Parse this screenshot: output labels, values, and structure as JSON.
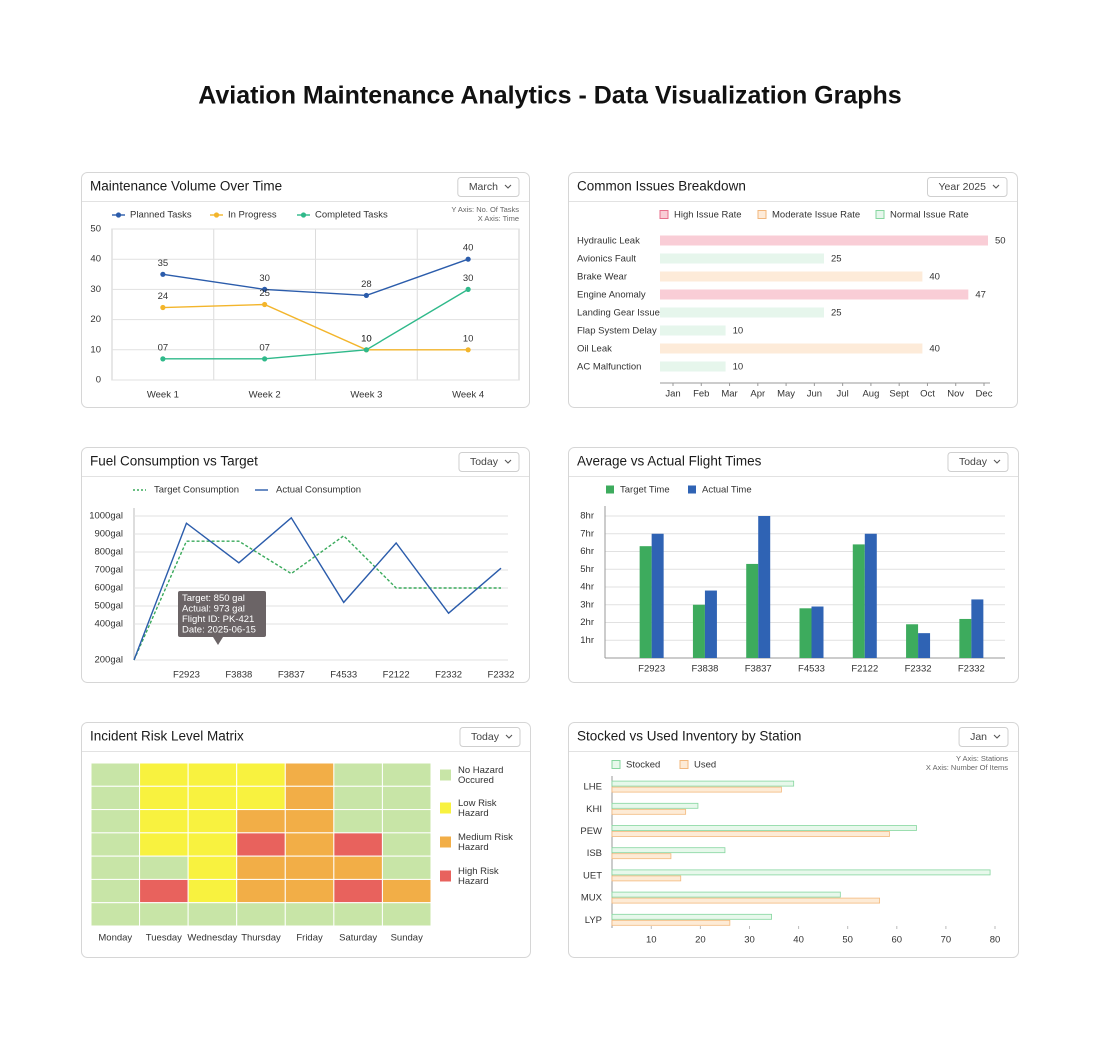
{
  "title": "Aviation Maintenance Analytics - Data Visualization Graphs",
  "chart_data": [
    {
      "type": "line",
      "title": "Maintenance Volume Over Time",
      "dropdown": "March",
      "axis_notes": [
        "Y Axis: No. Of Tasks",
        "X Axis: Time"
      ],
      "categories": [
        "Week 1",
        "Week 2",
        "Week 3",
        "Week 4"
      ],
      "series": [
        {
          "name": "Planned Tasks",
          "color": "#2b5cab",
          "values": [
            35,
            30,
            28,
            40
          ]
        },
        {
          "name": "In Progress",
          "color": "#f3b52b",
          "values": [
            24,
            25,
            10,
            10
          ]
        },
        {
          "name": "Completed Tasks",
          "color": "#2fb98a",
          "values": [
            7,
            7,
            10,
            30
          ],
          "value_labels": [
            "07",
            "07",
            "10",
            "30"
          ]
        }
      ],
      "ylim": [
        0,
        50
      ],
      "yticks": [
        0,
        10,
        20,
        30,
        40,
        50
      ],
      "grid": true,
      "markers": true,
      "data_labels": true,
      "legend": "top-left"
    },
    {
      "type": "bar",
      "orientation": "horizontal",
      "title": "Common Issues Breakdown",
      "dropdown": "Year 2025",
      "categories": [
        "Hydraulic Leak",
        "Avionics Fault",
        "Brake Wear",
        "Engine Anomaly",
        "Landing Gear Issue",
        "Flap System Delay",
        "Oil Leak",
        "AC Malfunction"
      ],
      "series": [
        {
          "name": "High Issue Rate",
          "color": "#f9cdd6",
          "edgecolor": "#e8708c",
          "values": [
            50,
            null,
            null,
            47,
            null,
            null,
            null,
            null
          ]
        },
        {
          "name": "Moderate Issue Rate",
          "color": "#fdebd9",
          "edgecolor": "#f2b77d",
          "values": [
            null,
            null,
            40,
            null,
            null,
            null,
            40,
            null
          ]
        },
        {
          "name": "Normal Issue Rate",
          "color": "#e6f6ec",
          "edgecolor": "#86d69f",
          "values": [
            null,
            25,
            null,
            null,
            25,
            10,
            null,
            10
          ]
        }
      ],
      "xlim": [
        0,
        50
      ],
      "xtick_labels": [
        "Jan",
        "Feb",
        "Mar",
        "Apr",
        "May",
        "Jun",
        "Jul",
        "Aug",
        "Sept",
        "Oct",
        "Nov",
        "Dec"
      ],
      "data_labels": true,
      "legend": "top"
    },
    {
      "type": "line",
      "title": "Fuel Consumption vs Target",
      "dropdown": "Today",
      "categories": [
        null,
        "F2923",
        "F3838",
        "F3837",
        "F4533",
        "F2122",
        "F2332",
        "F2332"
      ],
      "series": [
        {
          "name": "Target Consumption",
          "color": "#3aaa5c",
          "dash": true,
          "values": [
            200,
            860,
            860,
            680,
            890,
            600,
            600,
            600
          ]
        },
        {
          "name": "Actual Consumption",
          "color": "#2b5cab",
          "values": [
            200,
            960,
            740,
            990,
            520,
            850,
            460,
            710
          ]
        }
      ],
      "ylim": [
        200,
        1000
      ],
      "yticks": [
        {
          "value": 200,
          "label": "200gal"
        },
        {
          "value": 400,
          "label": "400gal"
        },
        {
          "value": 500,
          "label": "500gal"
        },
        {
          "value": 600,
          "label": "600gal"
        },
        {
          "value": 700,
          "label": "700gal"
        },
        {
          "value": 800,
          "label": "800gal"
        },
        {
          "value": 900,
          "label": "900gal"
        },
        {
          "value": 1000,
          "label": "1000gal"
        }
      ],
      "grid": true,
      "legend": "top-left",
      "tooltip": [
        "Target: 850 gal",
        "Actual: 973 gal",
        "Flight ID: PK-421",
        "Date: 2025-06-15"
      ]
    },
    {
      "type": "bar",
      "orientation": "vertical",
      "title": "Average vs Actual Flight Times",
      "dropdown": "Today",
      "categories": [
        "F2923",
        "F3838",
        "F3837",
        "F4533",
        "F2122",
        "F2332",
        "F2332"
      ],
      "series": [
        {
          "name": "Target Time",
          "color": "#3dab5d",
          "values": [
            6.3,
            3.0,
            5.3,
            2.8,
            6.4,
            1.9,
            2.2
          ]
        },
        {
          "name": "Actual Time",
          "color": "#2f63b4",
          "values": [
            7.0,
            3.8,
            8.0,
            2.9,
            7.0,
            1.4,
            3.3
          ]
        }
      ],
      "ylim": [
        0,
        8
      ],
      "yticks": [
        {
          "value": 1,
          "label": "1hr"
        },
        {
          "value": 2,
          "label": "2hr"
        },
        {
          "value": 3,
          "label": "3hr"
        },
        {
          "value": 4,
          "label": "4hr"
        },
        {
          "value": 5,
          "label": "5hr"
        },
        {
          "value": 6,
          "label": "6hr"
        },
        {
          "value": 7,
          "label": "7hr"
        },
        {
          "value": 8,
          "label": "8hr"
        }
      ],
      "grid": true,
      "legend": "top-left"
    },
    {
      "type": "heatmap",
      "title": "Incident Risk Level Matrix",
      "dropdown": "Today",
      "categories": [
        "Monday",
        "Tuesday",
        "Wednesday",
        "Thursday",
        "Friday",
        "Saturday",
        "Sunday"
      ],
      "values": [
        [
          0,
          1,
          1,
          1,
          2,
          0,
          0
        ],
        [
          0,
          1,
          1,
          1,
          2,
          0,
          0
        ],
        [
          0,
          1,
          1,
          2,
          2,
          0,
          0
        ],
        [
          0,
          1,
          1,
          3,
          2,
          3,
          0
        ],
        [
          0,
          0,
          1,
          2,
          2,
          2,
          0
        ],
        [
          0,
          3,
          1,
          2,
          2,
          3,
          2
        ],
        [
          0,
          0,
          0,
          0,
          0,
          0,
          0
        ]
      ],
      "levels": [
        {
          "name": "No Hazard Occured",
          "color": "#c8e5a7"
        },
        {
          "name": "Low Risk Hazard",
          "color": "#f8f23f"
        },
        {
          "name": "Medium Risk Hazard",
          "color": "#f2ae47"
        },
        {
          "name": "High Risk Hazard",
          "color": "#e8625d"
        }
      ],
      "legend": "right"
    },
    {
      "type": "bar",
      "orientation": "horizontal",
      "title": "Stocked vs Used Inventory by Station",
      "dropdown": "Jan",
      "axis_notes": [
        "Y Axis: Stations",
        "X Axis: Number Of Items"
      ],
      "categories": [
        "LHE",
        "KHI",
        "PEW",
        "ISB",
        "UET",
        "MUX",
        "LYP"
      ],
      "series": [
        {
          "name": "Stocked",
          "color": "#e7f8eb",
          "edgecolor": "#86d69f",
          "values": [
            39,
            19.5,
            64,
            25,
            79,
            48.5,
            34.5
          ]
        },
        {
          "name": "Used",
          "color": "#fdebd6",
          "edgecolor": "#f3b87c",
          "values": [
            36.5,
            17,
            58.5,
            14,
            16,
            56.5,
            26
          ]
        }
      ],
      "xlim": [
        2,
        80
      ],
      "xticks": [
        10,
        20,
        30,
        40,
        50,
        60,
        70,
        80
      ],
      "legend": "top-left"
    }
  ]
}
